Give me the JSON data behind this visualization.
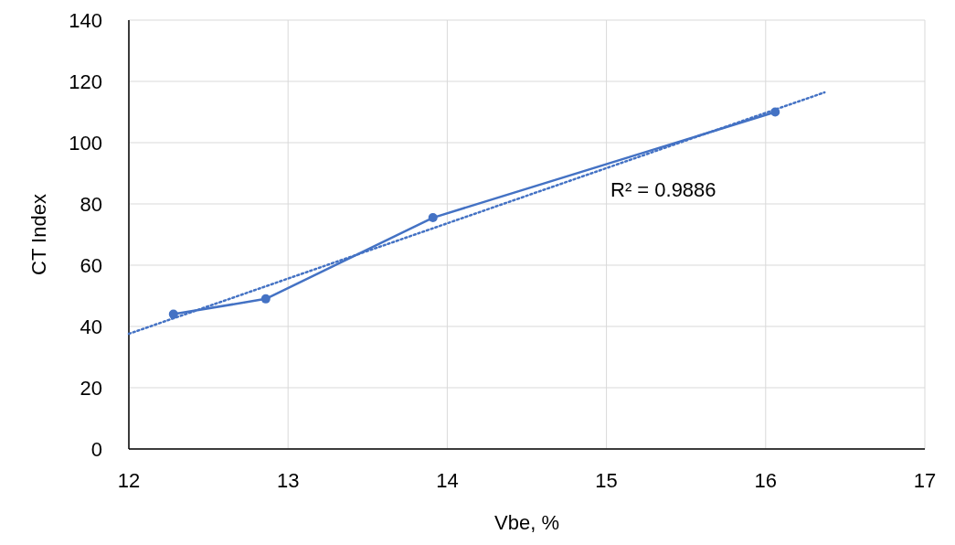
{
  "chart_data": {
    "type": "line",
    "xlabel": "Vbe, %",
    "ylabel": "CT Index",
    "xlim": [
      12,
      17
    ],
    "xticks": [
      12,
      13,
      14,
      15,
      16,
      17
    ],
    "ylim": [
      0,
      140
    ],
    "yticks": [
      0,
      20,
      40,
      60,
      80,
      100,
      120,
      140
    ],
    "grid": true,
    "series": [
      {
        "color": "#4472c4",
        "x": [
          12.28,
          12.86,
          13.91,
          16.06
        ],
        "values": [
          44,
          49,
          75.5,
          110
        ],
        "marker": "circle",
        "line_style": "solid"
      },
      {
        "type": "line",
        "color": "#4472c4",
        "x": [
          12,
          16.37
        ],
        "values": [
          37.6,
          116.4
        ],
        "marker": "none",
        "line_style": "dotted"
      }
    ],
    "annotations": [
      "R² = 0.9886"
    ]
  }
}
